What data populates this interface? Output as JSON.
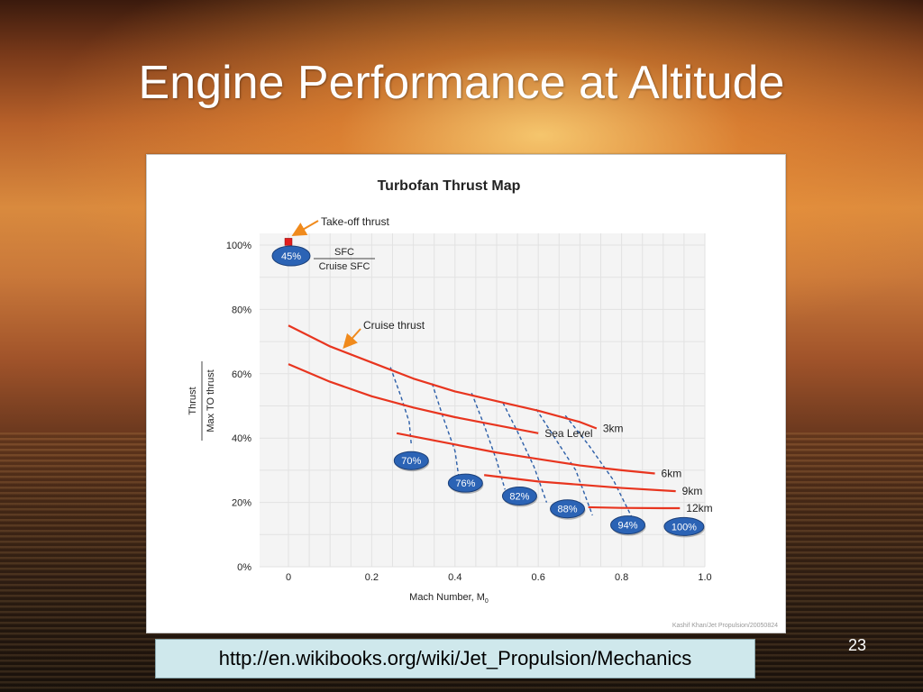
{
  "slide": {
    "title": "Engine Performance at Altitude",
    "url": "http://en.wikibooks.org/wiki/Jet_Propulsion/Mechanics",
    "page_number": "23"
  },
  "chart_data": {
    "type": "line",
    "title": "Turbofan Thrust Map",
    "xlabel": "Mach Number, M",
    "xlabel_subscript": "0",
    "ylabel_numerator": "Thrust",
    "ylabel_denominator": "Max TO thrust",
    "xlim": [
      0,
      1.0
    ],
    "ylim": [
      0,
      100
    ],
    "grid": true,
    "x_ticks": [
      "0",
      "0.2",
      "0.4",
      "0.6",
      "0.8",
      "1.0"
    ],
    "y_ticks": [
      "0%",
      "20%",
      "40%",
      "60%",
      "80%",
      "100%"
    ],
    "series": [
      {
        "name": "Sea Level",
        "x": [
          0,
          0.1,
          0.2,
          0.3,
          0.4,
          0.5,
          0.6
        ],
        "y": [
          63,
          57.5,
          53,
          49.5,
          46.5,
          44,
          41.5
        ]
      },
      {
        "name": "3km",
        "x": [
          0,
          0.1,
          0.2,
          0.3,
          0.4,
          0.5,
          0.6,
          0.7,
          0.74
        ],
        "y": [
          75,
          68.5,
          63.5,
          58.5,
          54.5,
          51.5,
          48.5,
          45,
          43
        ]
      },
      {
        "name": "6km",
        "x": [
          0.26,
          0.4,
          0.5,
          0.6,
          0.7,
          0.8,
          0.88
        ],
        "y": [
          41.5,
          38,
          35.5,
          33.5,
          31.5,
          30,
          29
        ]
      },
      {
        "name": "9km",
        "x": [
          0.47,
          0.6,
          0.7,
          0.8,
          0.93
        ],
        "y": [
          28.5,
          26.5,
          25.5,
          24.5,
          23.5
        ]
      },
      {
        "name": "12km",
        "x": [
          0.72,
          0.8,
          0.9,
          0.94
        ],
        "y": [
          18.5,
          18.3,
          18.2,
          18.2
        ]
      }
    ],
    "sfc_lines": [
      {
        "label": "70%",
        "x": [
          0.245,
          0.27,
          0.29,
          0.295
        ],
        "y": [
          62,
          53,
          45,
          38
        ]
      },
      {
        "label": "76%",
        "x": [
          0.345,
          0.37,
          0.4,
          0.41
        ],
        "y": [
          57,
          47,
          36,
          27
        ]
      },
      {
        "label": "82%",
        "x": [
          0.44,
          0.47,
          0.5,
          0.52
        ],
        "y": [
          54,
          44,
          33,
          24
        ]
      },
      {
        "label": "88%",
        "x": [
          0.515,
          0.55,
          0.59,
          0.62
        ],
        "y": [
          51,
          42,
          31,
          20
        ]
      },
      {
        "label": "94%",
        "x": [
          0.595,
          0.64,
          0.69,
          0.73
        ],
        "y": [
          49,
          40,
          30,
          16
        ]
      },
      {
        "label": "100%",
        "x": [
          0.665,
          0.72,
          0.78,
          0.83
        ],
        "y": [
          47,
          38,
          27,
          14
        ]
      }
    ],
    "badges": [
      {
        "label": "70%",
        "x": 0.295,
        "y": 33
      },
      {
        "label": "76%",
        "x": 0.425,
        "y": 26
      },
      {
        "label": "82%",
        "x": 0.555,
        "y": 22
      },
      {
        "label": "88%",
        "x": 0.67,
        "y": 18
      },
      {
        "label": "94%",
        "x": 0.815,
        "y": 13
      },
      {
        "label": "100%",
        "x": 0.95,
        "y": 12.5
      }
    ],
    "takeoff_point": {
      "x": 0,
      "y": 101
    },
    "annotations": {
      "takeoff": "Take-off thrust",
      "sfc_badge": "45%",
      "sfc_numerator": "SFC",
      "sfc_denominator": "Cruise SFC",
      "cruise": "Cruise thrust"
    },
    "credit": "Kashif Khan/Jet Propulsion/20050824",
    "colors": {
      "curve": "#e8351f",
      "sfc_line": "#2d5fa8",
      "badge": "#2b63b5",
      "grid": "#e2e2e2",
      "plot_bg": "#f4f4f4",
      "arrow": "#f08a1c"
    }
  }
}
